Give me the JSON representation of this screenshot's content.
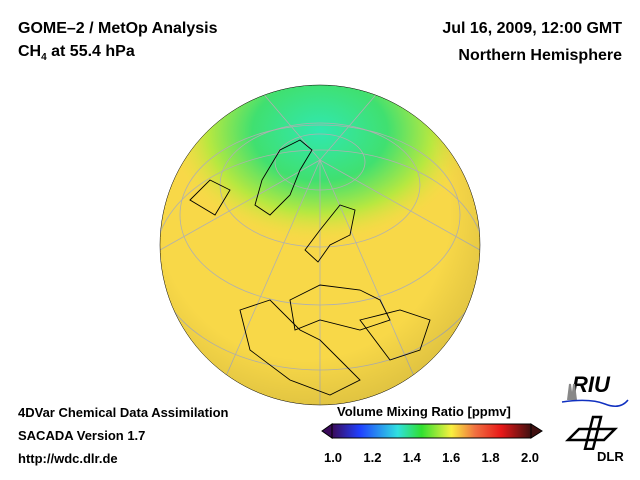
{
  "header": {
    "title": "GOME–2 / MetOp Analysis",
    "species_prefix": "CH",
    "species_sub": "4",
    "species_suffix": " at 55.4 hPa",
    "datetime": "Jul 16, 2009, 12:00 GMT",
    "region": "Northern Hemisphere"
  },
  "footer": {
    "line1": "4DVar Chemical Data Assimilation",
    "line2": "SACADA Version 1.7",
    "url": "http://wdc.dlr.de"
  },
  "colorbar": {
    "title": "Volume Mixing Ratio [ppmv]",
    "min": 1.0,
    "max": 2.0,
    "ticks": [
      "1.0",
      "1.2",
      "1.4",
      "1.6",
      "1.8",
      "2.0"
    ],
    "colors": [
      "#3a0a5a",
      "#2040ff",
      "#30e0e0",
      "#30e030",
      "#f8f040",
      "#f07040",
      "#e81818",
      "#401010"
    ]
  },
  "logos": {
    "riu": "RIU",
    "dlr": "DLR"
  }
}
